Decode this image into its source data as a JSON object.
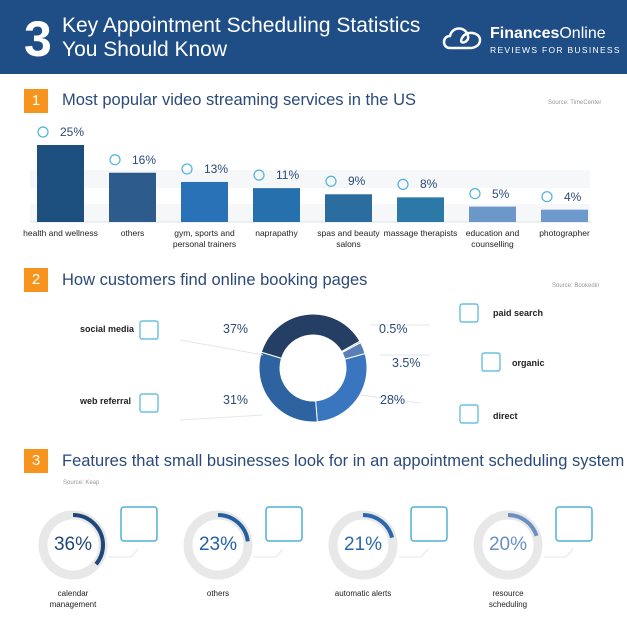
{
  "header": {
    "number": "3",
    "title_line1": "Key Appointment Scheduling Statistics",
    "title_line2": "You Should Know",
    "logo_bold": "Finances",
    "logo_light": "Online",
    "logo_tagline": "REVIEWS FOR BUSINESS"
  },
  "sections": [
    {
      "number": "1",
      "title": "Most popular video streaming services in the US",
      "source": "Source: TimeCenter"
    },
    {
      "number": "2",
      "title": "How customers find online booking pages",
      "source": "Source: Bookedin"
    },
    {
      "number": "3",
      "title": "Features that small businesses look for in an appointment scheduling system",
      "source": "Source: Keap"
    }
  ],
  "chart_data": [
    {
      "type": "bar",
      "categories": [
        "health and wellness",
        "others",
        "gym, sports and personal trainers",
        "naprapathy",
        "spas and beauty salons",
        "massage therapists",
        "education and counselling",
        "photographer"
      ],
      "values": [
        25,
        16,
        13,
        11,
        9,
        8,
        5,
        4
      ],
      "labels": [
        "25%",
        "16%",
        "13%",
        "11%",
        "9%",
        "8%",
        "5%",
        "4%"
      ],
      "icons": [
        "health-icon",
        "video-icon",
        "trainer-icon",
        "body-icon",
        "beauty-icon",
        "massage-icon",
        "book-icon",
        "camera-icon"
      ],
      "colors": [
        "#1d4f7e",
        "#2c5b8c",
        "#2a72b8",
        "#2770ae",
        "#2a6d9e",
        "#2c78a6",
        "#6b97c9",
        "#6e99cc"
      ],
      "ylim": [
        0,
        25
      ]
    },
    {
      "type": "pie",
      "donut": true,
      "categories": [
        "social media",
        "paid search",
        "organic",
        "direct",
        "web referral"
      ],
      "values": [
        37,
        0.5,
        3.5,
        28,
        31
      ],
      "labels": [
        "37%",
        "0.5%",
        "3.5%",
        "28%",
        "31%"
      ],
      "colors": [
        "#243f63",
        "#9ab3d6",
        "#5a7fb6",
        "#3a75c0",
        "#2d63a0"
      ]
    },
    {
      "type": "pie",
      "subtype": "progress-rings",
      "categories": [
        "calendar management",
        "others",
        "automatic alerts",
        "resource scheduling"
      ],
      "values": [
        36,
        23,
        21,
        20
      ],
      "labels": [
        "36%",
        "23%",
        "21%",
        "20%"
      ],
      "colors": [
        "#1f4878",
        "#2660a0",
        "#2a68ab",
        "#6a8fc4"
      ]
    }
  ]
}
